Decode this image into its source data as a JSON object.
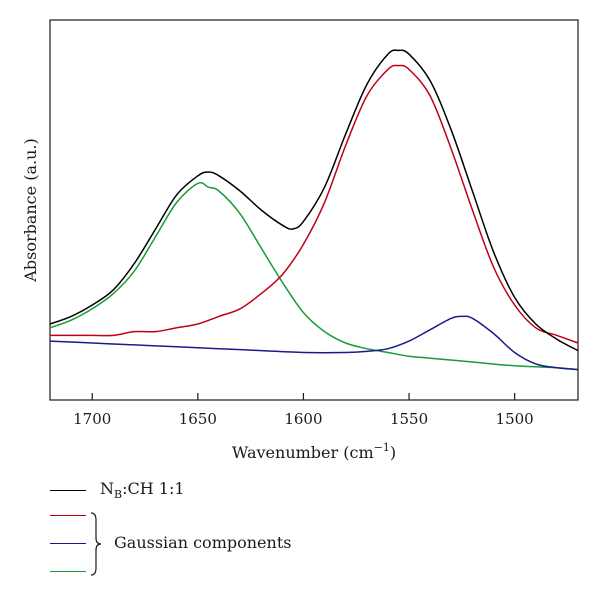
{
  "chart_data": {
    "type": "line",
    "title": "",
    "xlabel": "Wavenumber (cm",
    "xlabel_sup": "−1",
    "xlabel_close": ")",
    "ylabel": "Absorbance (a.u.)",
    "xlim": [
      1720,
      1470
    ],
    "x_reversed": true,
    "ylim": [
      0,
      1.0
    ],
    "y_ticks_shown": false,
    "x_ticks": [
      1700,
      1650,
      1600,
      1550,
      1500
    ],
    "x_tick_labels": [
      "1700",
      "1650",
      "1600",
      "1550",
      "1500"
    ],
    "grid": false,
    "series": [
      {
        "name": "NB:CH 1:1",
        "color": "#000000",
        "x": [
          1720,
          1710,
          1700,
          1690,
          1680,
          1670,
          1660,
          1650,
          1645,
          1640,
          1630,
          1620,
          1610,
          1605,
          1600,
          1590,
          1580,
          1570,
          1560,
          1555,
          1550,
          1540,
          1530,
          1520,
          1510,
          1500,
          1490,
          1480,
          1470
        ],
        "y": [
          0.2,
          0.22,
          0.25,
          0.29,
          0.36,
          0.45,
          0.54,
          0.59,
          0.6,
          0.59,
          0.55,
          0.5,
          0.46,
          0.45,
          0.47,
          0.56,
          0.7,
          0.83,
          0.91,
          0.92,
          0.91,
          0.84,
          0.71,
          0.55,
          0.39,
          0.27,
          0.2,
          0.16,
          0.13
        ]
      },
      {
        "name": "",
        "color": "#c0001a",
        "x": [
          1720,
          1710,
          1700,
          1690,
          1680,
          1670,
          1660,
          1650,
          1640,
          1630,
          1620,
          1610,
          1600,
          1590,
          1580,
          1570,
          1560,
          1555,
          1550,
          1540,
          1530,
          1520,
          1510,
          1500,
          1490,
          1480,
          1470
        ],
        "y": [
          0.17,
          0.17,
          0.17,
          0.17,
          0.18,
          0.18,
          0.19,
          0.2,
          0.22,
          0.24,
          0.28,
          0.33,
          0.41,
          0.52,
          0.67,
          0.8,
          0.87,
          0.88,
          0.87,
          0.8,
          0.66,
          0.5,
          0.35,
          0.25,
          0.19,
          0.17,
          0.15
        ]
      },
      {
        "name": "",
        "color": "#1a1a8c",
        "x": [
          1720,
          1700,
          1680,
          1660,
          1640,
          1620,
          1600,
          1580,
          1570,
          1560,
          1550,
          1540,
          1530,
          1525,
          1520,
          1510,
          1500,
          1490,
          1480,
          1470
        ],
        "y": [
          0.155,
          0.15,
          0.145,
          0.14,
          0.135,
          0.13,
          0.125,
          0.125,
          0.128,
          0.135,
          0.155,
          0.185,
          0.215,
          0.22,
          0.215,
          0.175,
          0.125,
          0.095,
          0.085,
          0.08
        ]
      },
      {
        "name": "",
        "color": "#1a9a3a",
        "x": [
          1720,
          1710,
          1700,
          1690,
          1680,
          1670,
          1660,
          1650,
          1645,
          1640,
          1630,
          1620,
          1610,
          1600,
          1590,
          1580,
          1570,
          1560,
          1550,
          1540,
          1520,
          1500,
          1480,
          1470
        ],
        "y": [
          0.19,
          0.21,
          0.24,
          0.28,
          0.34,
          0.43,
          0.52,
          0.57,
          0.56,
          0.55,
          0.49,
          0.4,
          0.31,
          0.23,
          0.18,
          0.15,
          0.135,
          0.125,
          0.115,
          0.11,
          0.1,
          0.09,
          0.085,
          0.08
        ]
      }
    ],
    "legend": {
      "placement": "below",
      "main_entry": {
        "label_prefix": "N",
        "label_sub": "B",
        "label_suffix": ":CH 1:1"
      },
      "group_label": "Gaussian components"
    }
  }
}
